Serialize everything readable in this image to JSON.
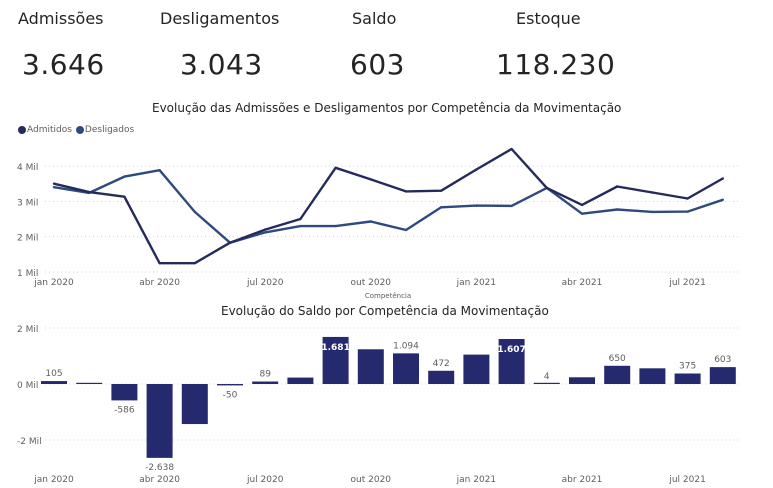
{
  "kpis": [
    {
      "label": "Admissões",
      "value": "3.646"
    },
    {
      "label": "Desligamentos",
      "value": "3.043"
    },
    {
      "label": "Saldo",
      "value": "603"
    },
    {
      "label": "Estoque",
      "value": "118.230"
    }
  ],
  "colors": {
    "admitidos": "#252a5c",
    "desligados": "#2f4a7e",
    "bars": "#252a6e",
    "grid": "#d0d0d0",
    "axis_text": "#605e5c"
  },
  "chart_data": [
    {
      "type": "line",
      "title": "Evolução das Admissões e Desligamentos por Competência da Movimentação",
      "xlabel": "Competência",
      "ylabel": "",
      "legend_position": "top-left",
      "grid": true,
      "x": [
        "jan 2020",
        "fev 2020",
        "mar 2020",
        "abr 2020",
        "mai 2020",
        "jun 2020",
        "jul 2020",
        "ago 2020",
        "set 2020",
        "out 2020",
        "nov 2020",
        "dez 2020",
        "jan 2021",
        "fev 2021",
        "mar 2021",
        "abr 2021",
        "mai 2021",
        "jun 2021",
        "jul 2021",
        "ago 2021"
      ],
      "x_tick_labels": [
        "jan 2020",
        "abr 2020",
        "jul 2020",
        "out 2020",
        "jan 2021",
        "abr 2021",
        "jul 2021"
      ],
      "y_tick_labels": [
        "1 Mil",
        "2 Mil",
        "3 Mil",
        "4 Mil"
      ],
      "y_ticks": [
        1000,
        2000,
        3000,
        4000
      ],
      "ylim": [
        1000,
        4600
      ],
      "series": [
        {
          "name": "Admitidos",
          "values": [
            3500,
            3260,
            3130,
            1250,
            1250,
            1830,
            2200,
            2500,
            3950,
            3620,
            3280,
            3300,
            3900,
            4480,
            3380,
            2900,
            3420,
            3250,
            3080,
            3646
          ]
        },
        {
          "name": "Desligados",
          "values": [
            3400,
            3240,
            3700,
            3880,
            2700,
            1830,
            2120,
            2300,
            2300,
            2430,
            2190,
            2830,
            2880,
            2870,
            3380,
            2650,
            2770,
            2700,
            2710,
            3043
          ]
        }
      ]
    },
    {
      "type": "bar",
      "title": "Evolução do Saldo por Competência da Movimentação",
      "xlabel": "",
      "ylabel": "",
      "grid": true,
      "categories": [
        "jan 2020",
        "fev 2020",
        "mar 2020",
        "abr 2020",
        "mai 2020",
        "jun 2020",
        "jul 2020",
        "ago 2020",
        "set 2020",
        "out 2020",
        "nov 2020",
        "dez 2020",
        "jan 2021",
        "fev 2021",
        "mar 2021",
        "abr 2021",
        "mai 2021",
        "jun 2021",
        "jul 2021",
        "ago 2021"
      ],
      "x_tick_labels": [
        "jan 2020",
        "abr 2020",
        "jul 2020",
        "out 2020",
        "jan 2021",
        "abr 2021",
        "jul 2021"
      ],
      "y_tick_labels": [
        "-2 Mil",
        "0 Mil",
        "2 Mil"
      ],
      "y_ticks": [
        -2000,
        0,
        2000
      ],
      "ylim": [
        -2900,
        2100
      ],
      "values": [
        105,
        15,
        -586,
        -2638,
        -1430,
        -50,
        89,
        230,
        1681,
        1240,
        1094,
        472,
        1050,
        1607,
        4,
        240,
        650,
        560,
        375,
        603
      ],
      "data_labels": [
        {
          "index": 0,
          "text": "105",
          "inside": false
        },
        {
          "index": 2,
          "text": "-586",
          "inside": false
        },
        {
          "index": 3,
          "text": "-2.638",
          "inside": false
        },
        {
          "index": 5,
          "text": "-50",
          "inside": false
        },
        {
          "index": 6,
          "text": "89",
          "inside": false
        },
        {
          "index": 8,
          "text": "1.681",
          "inside": true
        },
        {
          "index": 10,
          "text": "1.094",
          "inside": false
        },
        {
          "index": 11,
          "text": "472",
          "inside": false
        },
        {
          "index": 13,
          "text": "1.607",
          "inside": true
        },
        {
          "index": 14,
          "text": "4",
          "inside": false
        },
        {
          "index": 16,
          "text": "650",
          "inside": false
        },
        {
          "index": 18,
          "text": "375",
          "inside": false
        },
        {
          "index": 19,
          "text": "603",
          "inside": false
        }
      ]
    }
  ]
}
